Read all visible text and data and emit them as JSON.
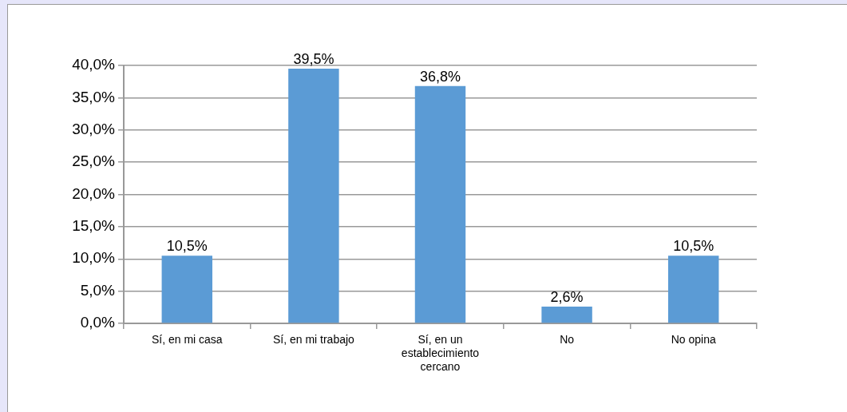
{
  "chart_data": {
    "type": "bar",
    "categories": [
      "Sí, en mi casa",
      "Sí, en mi trabajo",
      "Sí, en un establecimiento cercano",
      "No",
      "No opina"
    ],
    "values": [
      10.5,
      39.5,
      36.8,
      2.6,
      10.5
    ],
    "value_labels": [
      "10,5%",
      "39,5%",
      "36,8%",
      "2,6%",
      "10,5%"
    ],
    "color": "#5b9bd5",
    "ylim": [
      0,
      40
    ],
    "yticks": [
      {
        "value": 0,
        "label": "0,0%"
      },
      {
        "value": 5,
        "label": "5,0%"
      },
      {
        "value": 10,
        "label": "10,0%"
      },
      {
        "value": 15,
        "label": "15,0%"
      },
      {
        "value": 20,
        "label": "20,0%"
      },
      {
        "value": 25,
        "label": "25,0%"
      },
      {
        "value": 30,
        "label": "30,0%"
      },
      {
        "value": 35,
        "label": "35,0%"
      },
      {
        "value": 40,
        "label": "40,0%"
      }
    ],
    "grid": "y"
  }
}
